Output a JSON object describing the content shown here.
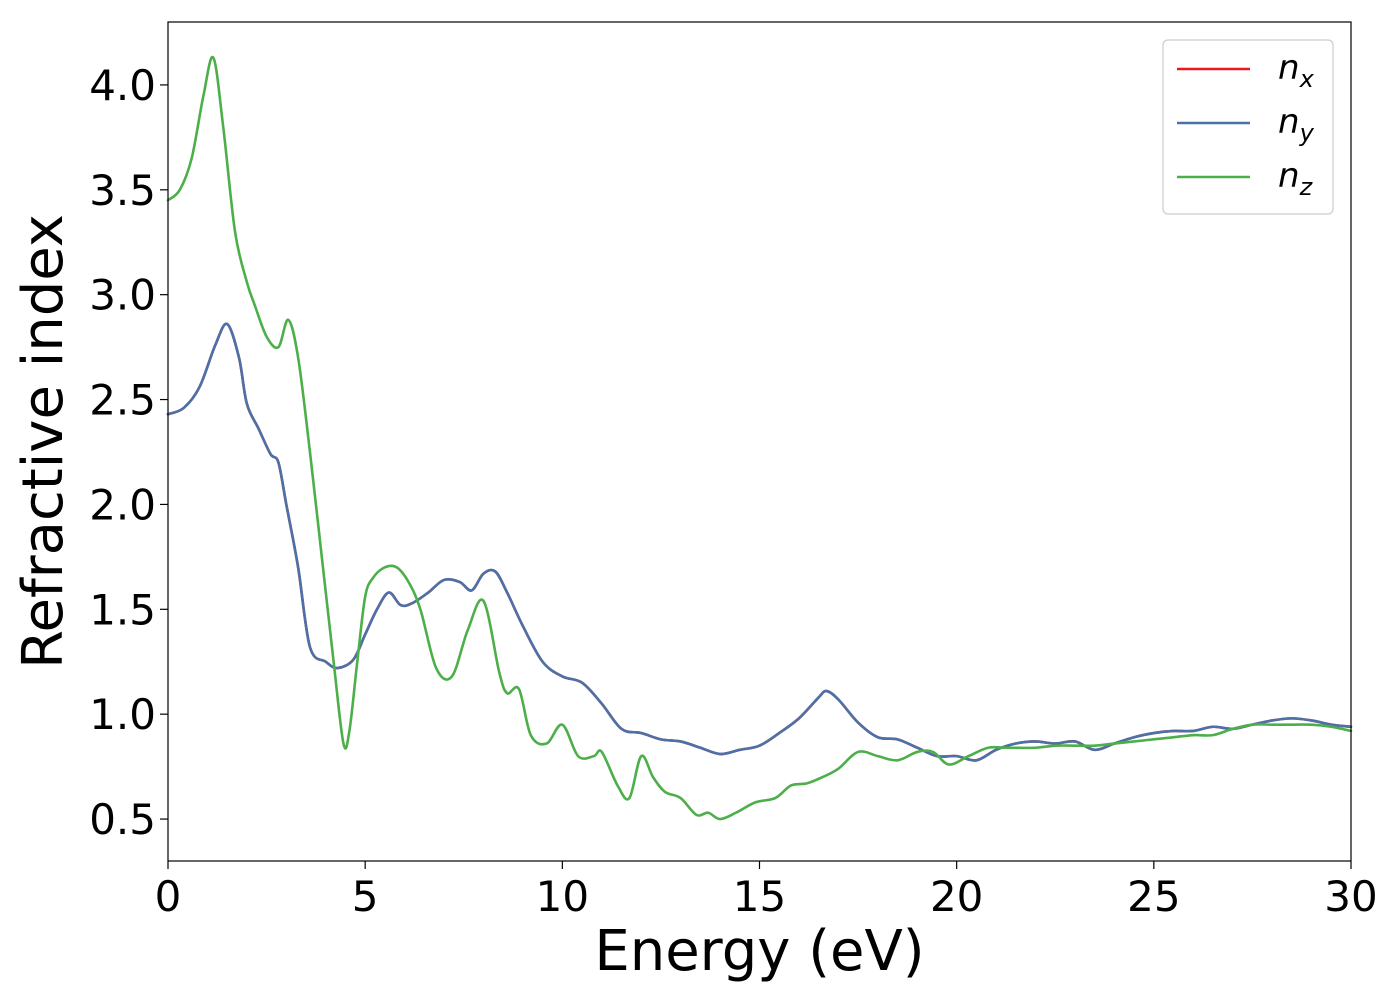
{
  "chart_data": {
    "type": "line",
    "title": "",
    "xlabel": "Energy (eV)",
    "ylabel": "Refractive index",
    "xlim": [
      0,
      30
    ],
    "ylim": [
      0.3,
      4.3
    ],
    "xticks": [
      0,
      5,
      10,
      15,
      20,
      25,
      30
    ],
    "xtick_labels": [
      "0",
      "5",
      "10",
      "15",
      "20",
      "25",
      "30"
    ],
    "yticks": [
      0.5,
      1.0,
      1.5,
      2.0,
      2.5,
      3.0,
      3.5,
      4.0
    ],
    "ytick_labels": [
      "0.5",
      "1.0",
      "1.5",
      "2.0",
      "2.5",
      "3.0",
      "3.5",
      "4.0"
    ],
    "grid": false,
    "legend_position": "top-right",
    "series": [
      {
        "name": "n_x",
        "label_base": "n",
        "label_sub": "x",
        "color": "#e41a1c",
        "x": [
          0,
          0.4,
          0.8,
          1.2,
          1.5,
          1.8,
          2.0,
          2.3,
          2.6,
          2.8,
          3.0,
          3.3,
          3.6,
          4.0,
          4.3,
          4.7,
          5.0,
          5.3,
          5.6,
          5.9,
          6.2,
          6.6,
          7.0,
          7.4,
          7.7,
          8.0,
          8.3,
          8.6,
          9.0,
          9.5,
          10.0,
          10.5,
          11.0,
          11.5,
          12.0,
          12.5,
          13.0,
          13.5,
          14.0,
          14.5,
          15.0,
          15.5,
          16.0,
          16.5,
          16.7,
          17.0,
          17.5,
          18.0,
          18.5,
          19.0,
          19.5,
          20.0,
          20.5,
          21.0,
          21.5,
          22.0,
          22.5,
          23.0,
          23.5,
          24.0,
          24.5,
          25.0,
          25.5,
          26.0,
          26.5,
          27.0,
          27.5,
          28.0,
          28.5,
          29.0,
          29.5,
          30.0
        ],
        "y": [
          2.43,
          2.46,
          2.56,
          2.76,
          2.86,
          2.7,
          2.48,
          2.36,
          2.24,
          2.2,
          2.0,
          1.7,
          1.32,
          1.25,
          1.22,
          1.26,
          1.38,
          1.5,
          1.58,
          1.52,
          1.53,
          1.58,
          1.64,
          1.63,
          1.59,
          1.67,
          1.68,
          1.58,
          1.42,
          1.25,
          1.18,
          1.15,
          1.05,
          0.93,
          0.91,
          0.88,
          0.87,
          0.84,
          0.81,
          0.83,
          0.85,
          0.91,
          0.98,
          1.08,
          1.11,
          1.07,
          0.96,
          0.89,
          0.88,
          0.84,
          0.8,
          0.8,
          0.78,
          0.83,
          0.86,
          0.87,
          0.86,
          0.87,
          0.83,
          0.86,
          0.89,
          0.91,
          0.92,
          0.92,
          0.94,
          0.93,
          0.95,
          0.97,
          0.98,
          0.97,
          0.95,
          0.94
        ]
      },
      {
        "name": "n_y",
        "label_base": "n",
        "label_sub": "y",
        "color": "#4a72a8",
        "x": [
          0,
          0.4,
          0.8,
          1.2,
          1.5,
          1.8,
          2.0,
          2.3,
          2.6,
          2.8,
          3.0,
          3.3,
          3.6,
          4.0,
          4.3,
          4.7,
          5.0,
          5.3,
          5.6,
          5.9,
          6.2,
          6.6,
          7.0,
          7.4,
          7.7,
          8.0,
          8.3,
          8.6,
          9.0,
          9.5,
          10.0,
          10.5,
          11.0,
          11.5,
          12.0,
          12.5,
          13.0,
          13.5,
          14.0,
          14.5,
          15.0,
          15.5,
          16.0,
          16.5,
          16.7,
          17.0,
          17.5,
          18.0,
          18.5,
          19.0,
          19.5,
          20.0,
          20.5,
          21.0,
          21.5,
          22.0,
          22.5,
          23.0,
          23.5,
          24.0,
          24.5,
          25.0,
          25.5,
          26.0,
          26.5,
          27.0,
          27.5,
          28.0,
          28.5,
          29.0,
          29.5,
          30.0
        ],
        "y": [
          2.43,
          2.46,
          2.56,
          2.76,
          2.86,
          2.7,
          2.48,
          2.36,
          2.24,
          2.2,
          2.0,
          1.7,
          1.32,
          1.25,
          1.22,
          1.26,
          1.38,
          1.5,
          1.58,
          1.52,
          1.53,
          1.58,
          1.64,
          1.63,
          1.59,
          1.67,
          1.68,
          1.58,
          1.42,
          1.25,
          1.18,
          1.15,
          1.05,
          0.93,
          0.91,
          0.88,
          0.87,
          0.84,
          0.81,
          0.83,
          0.85,
          0.91,
          0.98,
          1.08,
          1.11,
          1.07,
          0.96,
          0.89,
          0.88,
          0.84,
          0.8,
          0.8,
          0.78,
          0.83,
          0.86,
          0.87,
          0.86,
          0.87,
          0.83,
          0.86,
          0.89,
          0.91,
          0.92,
          0.92,
          0.94,
          0.93,
          0.95,
          0.97,
          0.98,
          0.97,
          0.95,
          0.94
        ]
      },
      {
        "name": "n_z",
        "label_base": "n",
        "label_sub": "z",
        "color": "#4daf4a",
        "x": [
          0,
          0.3,
          0.6,
          0.9,
          1.15,
          1.4,
          1.7,
          2.0,
          2.2,
          2.5,
          2.8,
          3.05,
          3.3,
          3.6,
          3.9,
          4.2,
          4.45,
          4.6,
          4.8,
          5.0,
          5.2,
          5.5,
          5.8,
          6.1,
          6.4,
          6.8,
          7.2,
          7.6,
          8.0,
          8.4,
          8.6,
          8.9,
          9.2,
          9.6,
          10.0,
          10.4,
          10.8,
          11.0,
          11.4,
          11.7,
          12.0,
          12.3,
          12.6,
          13.0,
          13.4,
          13.7,
          14.0,
          14.4,
          14.9,
          15.4,
          15.8,
          16.2,
          16.6,
          17.0,
          17.5,
          18.0,
          18.5,
          19.0,
          19.4,
          19.8,
          20.3,
          20.8,
          21.3,
          22.0,
          22.5,
          23.0,
          23.5,
          24.0,
          24.5,
          25.0,
          25.5,
          26.0,
          26.5,
          27.0,
          27.5,
          28.0,
          28.5,
          29.0,
          29.5,
          30.0
        ],
        "y": [
          3.45,
          3.5,
          3.65,
          3.95,
          4.13,
          3.8,
          3.3,
          3.06,
          2.95,
          2.8,
          2.75,
          2.88,
          2.7,
          2.25,
          1.75,
          1.25,
          0.86,
          0.92,
          1.25,
          1.56,
          1.65,
          1.7,
          1.7,
          1.63,
          1.5,
          1.22,
          1.18,
          1.4,
          1.54,
          1.2,
          1.1,
          1.12,
          0.9,
          0.86,
          0.95,
          0.8,
          0.8,
          0.82,
          0.66,
          0.6,
          0.8,
          0.7,
          0.63,
          0.6,
          0.52,
          0.53,
          0.5,
          0.53,
          0.58,
          0.6,
          0.66,
          0.67,
          0.7,
          0.74,
          0.82,
          0.8,
          0.78,
          0.82,
          0.82,
          0.76,
          0.8,
          0.84,
          0.84,
          0.84,
          0.85,
          0.85,
          0.85,
          0.86,
          0.87,
          0.88,
          0.89,
          0.9,
          0.9,
          0.93,
          0.95,
          0.95,
          0.95,
          0.95,
          0.94,
          0.92
        ]
      }
    ]
  }
}
